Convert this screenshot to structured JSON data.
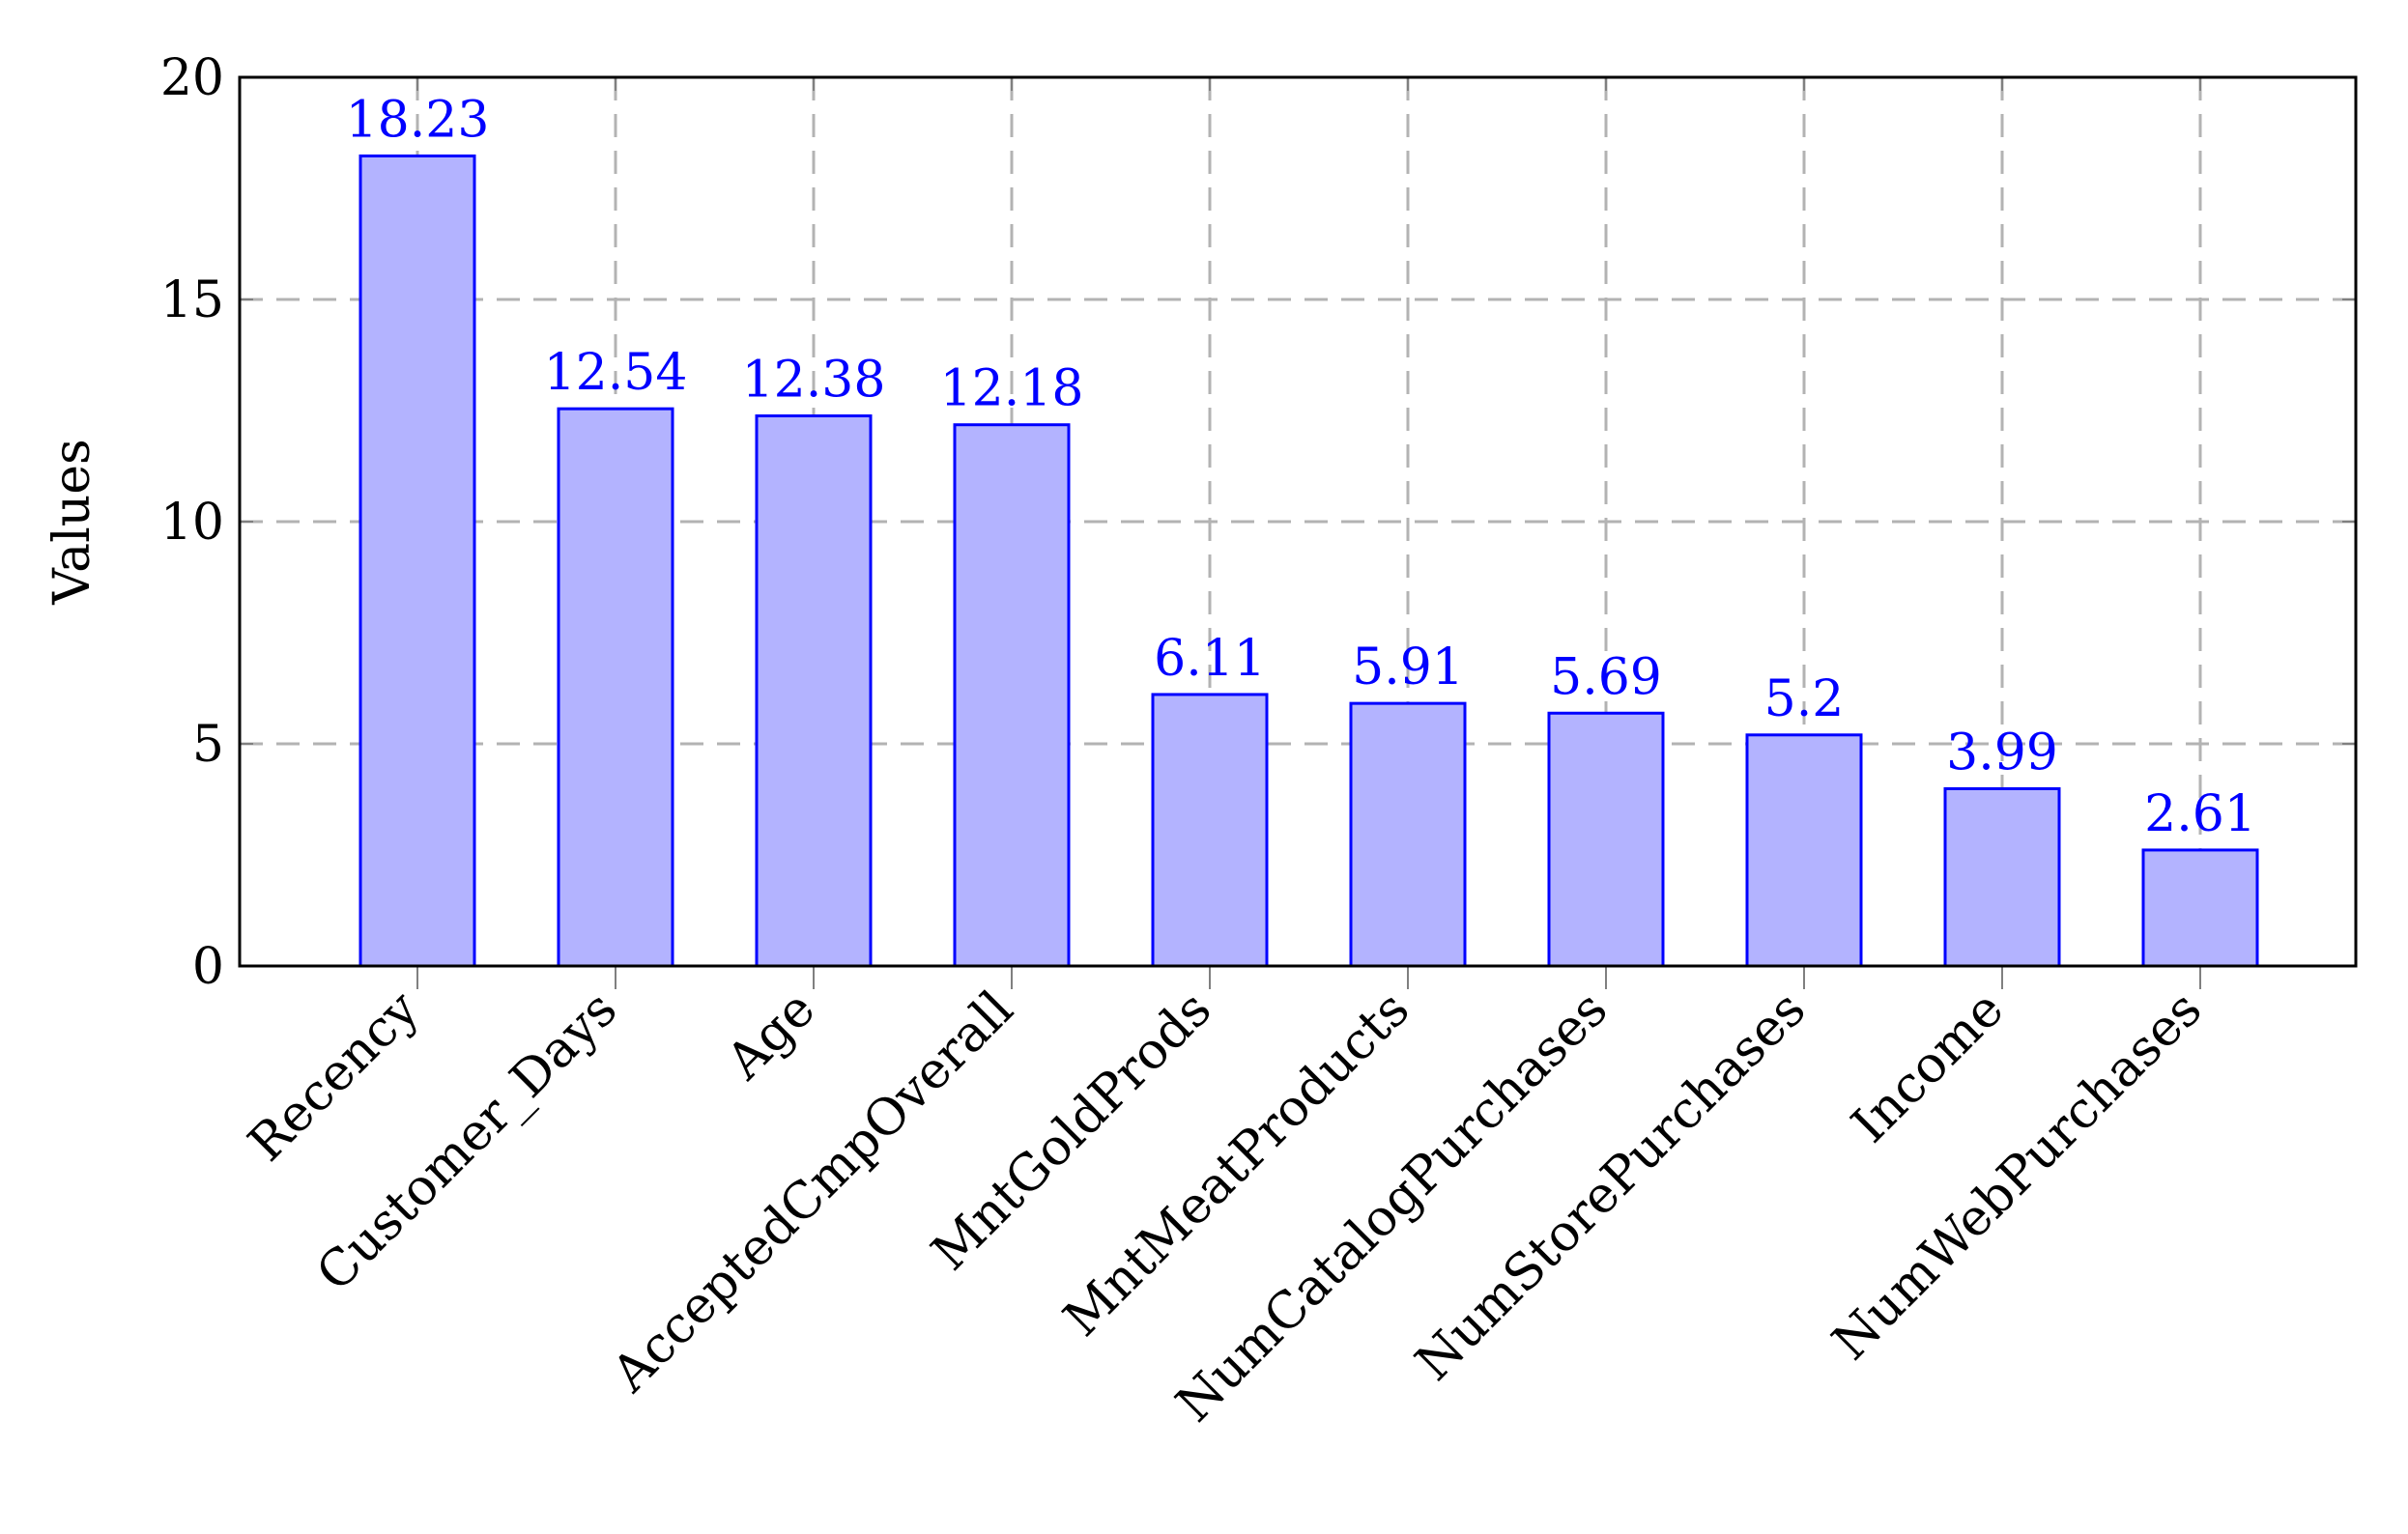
{
  "chart_data": {
    "type": "bar",
    "title": "",
    "xlabel": "",
    "ylabel": "Values",
    "ylim": [
      0,
      20
    ],
    "yticks": [
      0,
      5,
      10,
      15,
      20
    ],
    "grid": true,
    "categories": [
      "Recency",
      "Customer_Days",
      "Age",
      "AcceptedCmpOverall",
      "MntGoldProds",
      "MntMeatProducts",
      "NumCatalogPurchases",
      "NumStorePurchases",
      "Income",
      "NumWebPurchases"
    ],
    "values": [
      18.23,
      12.54,
      12.38,
      12.18,
      6.11,
      5.91,
      5.69,
      5.2,
      3.99,
      2.61
    ],
    "value_labels": [
      "18.23",
      "12.54",
      "12.38",
      "12.18",
      "6.11",
      "5.91",
      "5.69",
      "5.2",
      "3.99",
      "2.61"
    ],
    "colors": {
      "bar_fill": "#b3b3ff",
      "bar_stroke": "#0000ff",
      "data_label": "#0000ff",
      "grid": "#b3b3b3"
    }
  }
}
